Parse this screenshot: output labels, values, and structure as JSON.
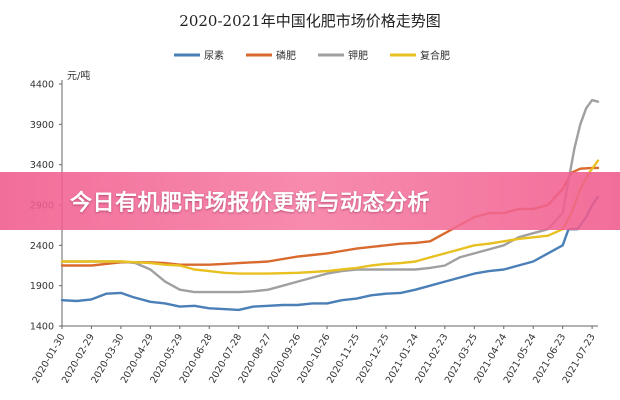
{
  "banner": {
    "headline": "今日有机肥市场报价更新与动态分析"
  },
  "chart_data": {
    "type": "line",
    "title": "2020-2021年中国化肥市场价格走势图",
    "ylabel": "元/吨",
    "ylim": [
      1400,
      4400
    ],
    "yticks": [
      1400,
      1900,
      2400,
      2900,
      3400,
      3900,
      4400
    ],
    "grid": false,
    "legend_position": "top",
    "x_labels": [
      "2020-01-30",
      "2020-02-29",
      "2020-03-30",
      "2020-04-29",
      "2020-05-29",
      "2020-06-28",
      "2020-07-28",
      "2020-08-27",
      "2020-09-26",
      "2020-10-26",
      "2020-11-25",
      "2020-12-25",
      "2021-01-24",
      "2021-02-23",
      "2021-03-25",
      "2021-04-24",
      "2021-05-24",
      "2021-06-23",
      "2021-07-23"
    ],
    "series": [
      {
        "name": "尿素",
        "color": "#4a7fb8",
        "points": [
          [
            0,
            1720
          ],
          [
            0.5,
            1710
          ],
          [
            1,
            1730
          ],
          [
            1.5,
            1800
          ],
          [
            2,
            1810
          ],
          [
            2.4,
            1760
          ],
          [
            3,
            1700
          ],
          [
            3.5,
            1680
          ],
          [
            4,
            1640
          ],
          [
            4.5,
            1650
          ],
          [
            5,
            1620
          ],
          [
            5.5,
            1610
          ],
          [
            6,
            1600
          ],
          [
            6.5,
            1640
          ],
          [
            7,
            1650
          ],
          [
            7.5,
            1660
          ],
          [
            8,
            1660
          ],
          [
            8.5,
            1680
          ],
          [
            9,
            1680
          ],
          [
            9.5,
            1720
          ],
          [
            10,
            1740
          ],
          [
            10.5,
            1780
          ],
          [
            11,
            1800
          ],
          [
            11.5,
            1810
          ],
          [
            12,
            1850
          ],
          [
            12.5,
            1900
          ],
          [
            13,
            1950
          ],
          [
            13.5,
            2000
          ],
          [
            14,
            2050
          ],
          [
            14.5,
            2080
          ],
          [
            15,
            2100
          ],
          [
            15.5,
            2150
          ],
          [
            16,
            2200
          ],
          [
            16.5,
            2300
          ],
          [
            17,
            2400
          ],
          [
            17.2,
            2600
          ],
          [
            17.5,
            2600
          ],
          [
            17.8,
            2750
          ],
          [
            18,
            2900
          ],
          [
            18.2,
            3000
          ]
        ]
      },
      {
        "name": "磷肥",
        "color": "#d96a2e",
        "points": [
          [
            0,
            2150
          ],
          [
            1,
            2150
          ],
          [
            1.5,
            2170
          ],
          [
            2,
            2190
          ],
          [
            3,
            2190
          ],
          [
            3.5,
            2180
          ],
          [
            4,
            2160
          ],
          [
            5,
            2160
          ],
          [
            5.5,
            2170
          ],
          [
            6,
            2180
          ],
          [
            7,
            2200
          ],
          [
            7.5,
            2230
          ],
          [
            8,
            2260
          ],
          [
            8.5,
            2280
          ],
          [
            9,
            2300
          ],
          [
            9.5,
            2330
          ],
          [
            10,
            2360
          ],
          [
            10.5,
            2380
          ],
          [
            11,
            2400
          ],
          [
            11.5,
            2420
          ],
          [
            12,
            2430
          ],
          [
            12.5,
            2450
          ],
          [
            13,
            2550
          ],
          [
            13.5,
            2650
          ],
          [
            14,
            2750
          ],
          [
            14.5,
            2800
          ],
          [
            15,
            2800
          ],
          [
            15.5,
            2850
          ],
          [
            16,
            2850
          ],
          [
            16.5,
            2900
          ],
          [
            17,
            3100
          ],
          [
            17.3,
            3300
          ],
          [
            17.6,
            3350
          ],
          [
            18,
            3360
          ],
          [
            18.2,
            3360
          ]
        ]
      },
      {
        "name": "钾肥",
        "color": "#a0a0a0",
        "points": [
          [
            0,
            2200
          ],
          [
            1,
            2200
          ],
          [
            2,
            2200
          ],
          [
            2.5,
            2180
          ],
          [
            3,
            2100
          ],
          [
            3.5,
            1950
          ],
          [
            4,
            1850
          ],
          [
            4.5,
            1820
          ],
          [
            5,
            1820
          ],
          [
            6,
            1820
          ],
          [
            6.5,
            1830
          ],
          [
            7,
            1850
          ],
          [
            7.5,
            1900
          ],
          [
            8,
            1950
          ],
          [
            8.5,
            2000
          ],
          [
            9,
            2050
          ],
          [
            9.5,
            2080
          ],
          [
            10,
            2100
          ],
          [
            11,
            2100
          ],
          [
            12,
            2100
          ],
          [
            12.5,
            2120
          ],
          [
            13,
            2150
          ],
          [
            13.5,
            2250
          ],
          [
            14,
            2300
          ],
          [
            14.5,
            2350
          ],
          [
            15,
            2400
          ],
          [
            15.5,
            2500
          ],
          [
            16,
            2550
          ],
          [
            16.5,
            2600
          ],
          [
            17,
            2800
          ],
          [
            17.2,
            3200
          ],
          [
            17.4,
            3600
          ],
          [
            17.6,
            3900
          ],
          [
            17.8,
            4100
          ],
          [
            18,
            4200
          ],
          [
            18.2,
            4180
          ]
        ]
      },
      {
        "name": "复合肥",
        "color": "#e8c020",
        "points": [
          [
            0,
            2200
          ],
          [
            1,
            2200
          ],
          [
            2,
            2200
          ],
          [
            3,
            2180
          ],
          [
            3.5,
            2160
          ],
          [
            4,
            2150
          ],
          [
            4.5,
            2100
          ],
          [
            5,
            2080
          ],
          [
            5.5,
            2060
          ],
          [
            6,
            2050
          ],
          [
            7,
            2050
          ],
          [
            8,
            2060
          ],
          [
            8.5,
            2070
          ],
          [
            9,
            2080
          ],
          [
            9.5,
            2100
          ],
          [
            10,
            2120
          ],
          [
            10.5,
            2150
          ],
          [
            11,
            2170
          ],
          [
            11.5,
            2180
          ],
          [
            12,
            2200
          ],
          [
            12.5,
            2250
          ],
          [
            13,
            2300
          ],
          [
            13.5,
            2350
          ],
          [
            14,
            2400
          ],
          [
            14.5,
            2420
          ],
          [
            15,
            2450
          ],
          [
            15.5,
            2480
          ],
          [
            16,
            2500
          ],
          [
            16.5,
            2520
          ],
          [
            17,
            2600
          ],
          [
            17.3,
            2800
          ],
          [
            17.6,
            3100
          ],
          [
            17.9,
            3300
          ],
          [
            18.1,
            3400
          ],
          [
            18.2,
            3450
          ]
        ]
      }
    ]
  }
}
